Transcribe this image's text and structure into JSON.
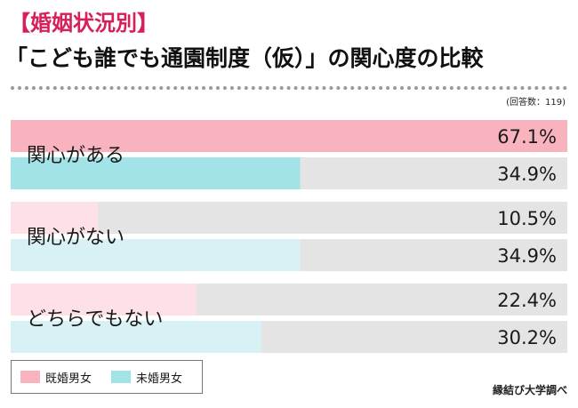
{
  "header": {
    "tag": "【婚姻状況別】",
    "title": "「こども誰でも通園制度（仮）」の関心度の比較",
    "note": "(回答数：119)"
  },
  "legend": {
    "items": [
      {
        "label": "既婚男女",
        "color": "#f8b3bf"
      },
      {
        "label": "未婚男女",
        "color": "#a2e3e8"
      }
    ]
  },
  "credit": "縁結び大学調べ",
  "colors": {
    "track": "#e4e4e4",
    "married_strong": "#f8b3bf",
    "unmarried_strong": "#a2e3e8",
    "married_light": "#fde1e6",
    "unmarried_light": "#d8f1f4"
  },
  "chart_data": {
    "type": "bar",
    "orientation": "horizontal",
    "categories": [
      "関心がある",
      "関心がない",
      "どちらでもない"
    ],
    "series": [
      {
        "name": "既婚男女",
        "values": [
          67.1,
          10.5,
          22.4
        ]
      },
      {
        "name": "未婚男女",
        "values": [
          34.9,
          34.9,
          30.2
        ]
      }
    ],
    "value_labels": [
      [
        "67.1%",
        "34.9%"
      ],
      [
        "10.5%",
        "34.9%"
      ],
      [
        "22.4%",
        "30.2%"
      ]
    ],
    "xlim": [
      0,
      67.1
    ],
    "legend_position": "bottom-left"
  }
}
